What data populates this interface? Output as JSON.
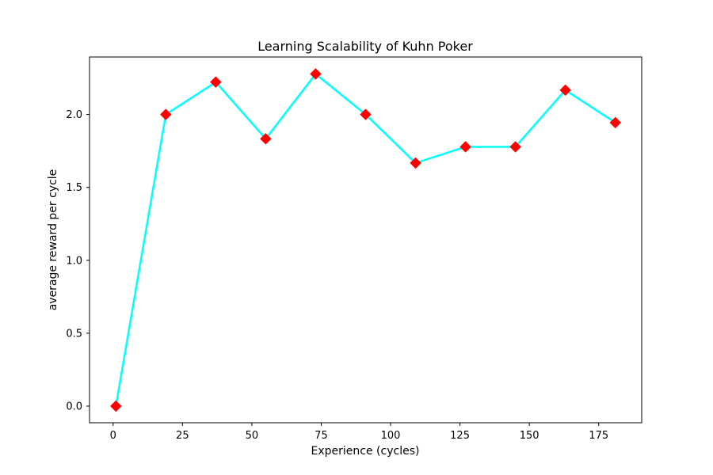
{
  "chart_data": {
    "type": "line",
    "title": "Learning Scalability of Kuhn Poker",
    "xlabel": "Experience (cycles)",
    "ylabel": "average reward per cycle",
    "xlim": [
      -8.5,
      190.5
    ],
    "ylim": [
      -0.114,
      2.394
    ],
    "xticks": [
      0,
      25,
      50,
      75,
      100,
      125,
      150,
      175
    ],
    "xtick_labels": [
      "0",
      "25",
      "50",
      "75",
      "100",
      "125",
      "150",
      "175"
    ],
    "yticks": [
      0.0,
      0.5,
      1.0,
      1.5,
      2.0
    ],
    "ytick_labels": [
      "0.0",
      "0.5",
      "1.0",
      "1.5",
      "2.0"
    ],
    "grid": false,
    "legend": false,
    "series": [
      {
        "x": [
          1,
          19,
          37,
          55,
          73,
          91,
          109,
          127,
          145,
          163,
          181
        ],
        "values": [
          0.0,
          2.0,
          2.222,
          1.833,
          2.278,
          2.0,
          1.667,
          1.778,
          1.778,
          2.167,
          1.944
        ],
        "line_color": "#00ffff",
        "marker_color": "#ff0000",
        "marker": "diamond"
      }
    ]
  }
}
